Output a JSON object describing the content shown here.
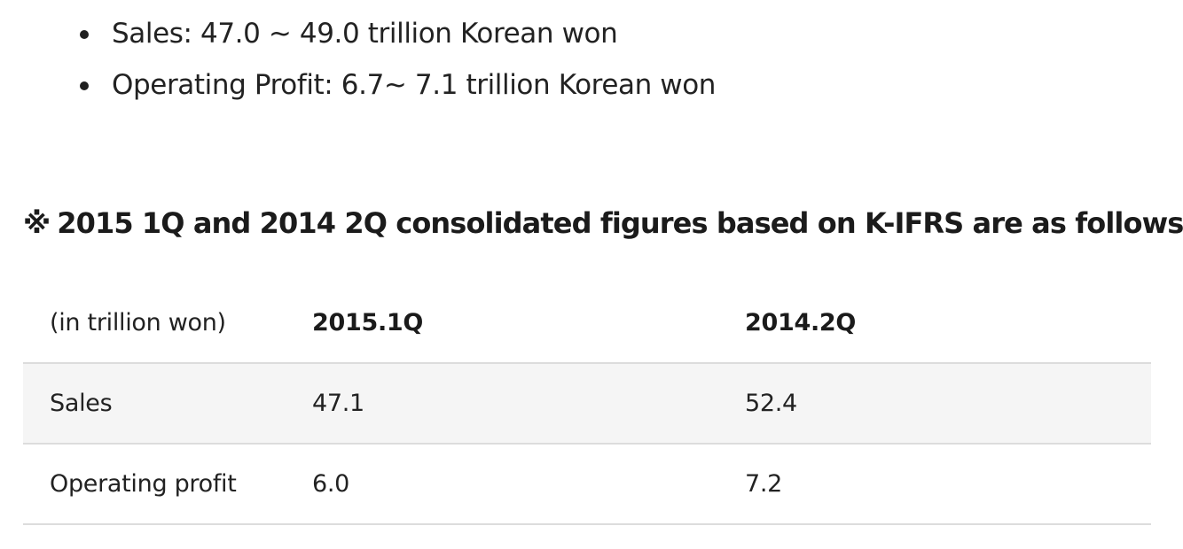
{
  "guidance": {
    "bullets": [
      "Sales: 47.0 ~ 49.0 trillion Korean won",
      "Operating Profit: 6.7~ 7.1 trillion Korean won"
    ]
  },
  "note": {
    "mark": "※",
    "heading": "2015 1Q and 2014 2Q consolidated figures based on K-IFRS are as follows"
  },
  "table": {
    "headers": [
      "(in trillion won)",
      "2015.1Q",
      "2014.2Q"
    ],
    "rows": [
      [
        "Sales",
        "47.1",
        "52.4"
      ],
      [
        "Operating profit",
        "6.0",
        "7.2"
      ]
    ]
  }
}
